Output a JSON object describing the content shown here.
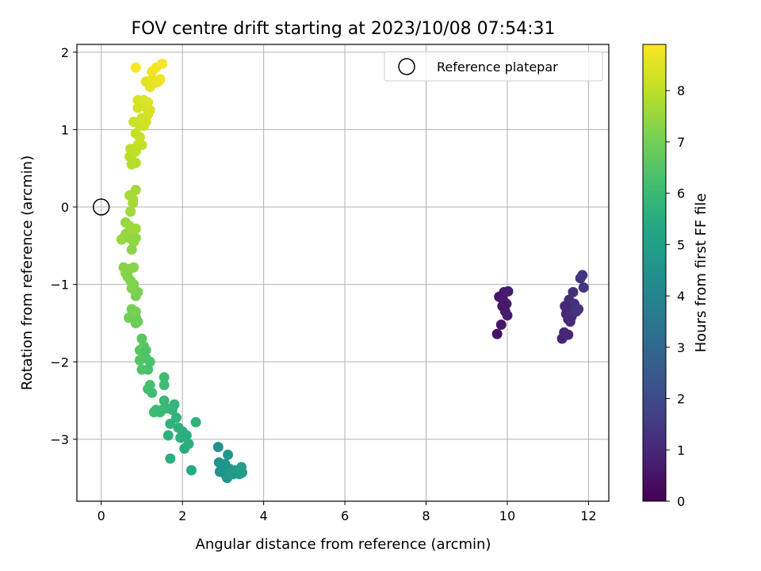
{
  "chart_data": {
    "type": "scatter",
    "title": "FOV centre drift starting at 2023/10/08 07:54:31",
    "xlabel": "Angular distance from reference (arcmin)",
    "ylabel": "Rotation from reference (arcmin)",
    "xlim": [
      -0.6,
      12.5
    ],
    "ylim": [
      -3.8,
      2.1
    ],
    "xticks": [
      0,
      2,
      4,
      6,
      8,
      10,
      12
    ],
    "yticks": [
      -3,
      -2,
      -1,
      0,
      1,
      2
    ],
    "grid": true,
    "legend": {
      "location": "top-right",
      "entries": [
        "Reference platepar"
      ]
    },
    "reference_point": {
      "x": 0,
      "y": 0
    },
    "colorbar": {
      "label": "Hours from first FF file",
      "range": [
        0,
        8.9
      ],
      "ticks": [
        0,
        1,
        2,
        3,
        4,
        5,
        6,
        7,
        8
      ],
      "colormap": "viridis"
    },
    "series": [
      {
        "points": [
          [
            9.75,
            -1.64,
            0.45
          ],
          [
            9.8,
            -1.16,
            0.5
          ],
          [
            9.85,
            -1.52,
            0.55
          ],
          [
            9.9,
            -1.2,
            0.6
          ],
          [
            9.92,
            -1.1,
            0.62
          ],
          [
            9.95,
            -1.35,
            0.65
          ],
          [
            10.0,
            -1.4,
            0.7
          ],
          [
            10.02,
            -1.09,
            0.72
          ],
          [
            9.98,
            -1.25,
            0.68
          ],
          [
            9.88,
            -1.28,
            0.58
          ],
          [
            11.35,
            -1.7,
            0.9
          ],
          [
            11.4,
            -1.62,
            0.95
          ],
          [
            11.45,
            -1.38,
            1.0
          ],
          [
            11.5,
            -1.45,
            1.05
          ],
          [
            11.52,
            -1.2,
            1.1
          ],
          [
            11.55,
            -1.3,
            1.12
          ],
          [
            11.58,
            -1.42,
            1.15
          ],
          [
            11.6,
            -1.38,
            1.18
          ],
          [
            11.62,
            -1.1,
            1.2
          ],
          [
            11.65,
            -1.25,
            1.22
          ],
          [
            11.7,
            -1.35,
            1.25
          ],
          [
            11.75,
            -1.32,
            1.3
          ],
          [
            11.8,
            -0.92,
            1.35
          ],
          [
            11.85,
            -0.88,
            1.38
          ],
          [
            11.88,
            -1.04,
            1.4
          ],
          [
            11.5,
            -1.65,
            1.0
          ],
          [
            11.42,
            -1.28,
            0.98
          ],
          [
            11.55,
            -1.48,
            1.08
          ],
          [
            2.88,
            -3.1,
            4.4
          ],
          [
            2.9,
            -3.3,
            4.45
          ],
          [
            2.95,
            -3.4,
            4.5
          ],
          [
            3.0,
            -3.35,
            4.55
          ],
          [
            3.05,
            -3.45,
            4.6
          ],
          [
            3.1,
            -3.5,
            4.65
          ],
          [
            3.12,
            -3.2,
            4.7
          ],
          [
            3.15,
            -3.38,
            4.72
          ],
          [
            3.2,
            -3.42,
            4.75
          ],
          [
            3.25,
            -3.45,
            4.78
          ],
          [
            3.3,
            -3.4,
            4.8
          ],
          [
            3.4,
            -3.45,
            4.85
          ],
          [
            3.45,
            -3.36,
            4.9
          ],
          [
            3.47,
            -3.43,
            4.92
          ],
          [
            3.05,
            -3.32,
            4.58
          ],
          [
            2.92,
            -3.42,
            4.5
          ],
          [
            1.7,
            -3.25,
            5.6
          ],
          [
            2.22,
            -3.4,
            5.4
          ],
          [
            2.33,
            -2.78,
            5.7
          ],
          [
            2.05,
            -3.12,
            5.5
          ],
          [
            2.15,
            -3.06,
            5.55
          ],
          [
            2.0,
            -2.9,
            5.6
          ],
          [
            1.9,
            -2.85,
            5.7
          ],
          [
            1.85,
            -2.72,
            5.75
          ],
          [
            1.75,
            -2.62,
            5.8
          ],
          [
            1.8,
            -2.55,
            5.85
          ],
          [
            1.7,
            -2.8,
            5.78
          ],
          [
            1.65,
            -2.95,
            5.65
          ],
          [
            1.6,
            -2.6,
            5.9
          ],
          [
            1.55,
            -2.5,
            5.95
          ],
          [
            1.45,
            -2.65,
            6.0
          ],
          [
            1.35,
            -2.62,
            6.05
          ],
          [
            1.3,
            -2.65,
            6.08
          ],
          [
            1.5,
            -2.62,
            6.02
          ],
          [
            1.95,
            -2.98,
            5.62
          ],
          [
            2.1,
            -2.95,
            5.58
          ],
          [
            1.55,
            -2.2,
            6.1
          ],
          [
            1.55,
            -2.3,
            6.12
          ],
          [
            1.25,
            -2.4,
            6.15
          ],
          [
            1.15,
            -2.35,
            6.2
          ],
          [
            1.2,
            -2.3,
            6.25
          ],
          [
            1.15,
            -2.1,
            6.3
          ],
          [
            1.2,
            -2.0,
            6.35
          ],
          [
            1.1,
            -1.95,
            6.4
          ],
          [
            1.05,
            -1.9,
            6.45
          ],
          [
            0.95,
            -1.98,
            6.5
          ],
          [
            0.95,
            -1.85,
            6.55
          ],
          [
            1.0,
            -1.7,
            6.6
          ],
          [
            1.05,
            -1.8,
            6.62
          ],
          [
            1.0,
            -2.1,
            6.38
          ],
          [
            1.1,
            -1.85,
            6.42
          ],
          [
            0.85,
            -1.5,
            6.8
          ],
          [
            0.9,
            -1.48,
            6.85
          ],
          [
            0.85,
            -1.42,
            6.9
          ],
          [
            0.68,
            -1.43,
            6.95
          ],
          [
            0.75,
            -1.32,
            7.0
          ],
          [
            0.8,
            -1.35,
            7.02
          ],
          [
            0.85,
            -1.35,
            7.05
          ],
          [
            0.9,
            -1.1,
            7.1
          ],
          [
            0.85,
            -1.15,
            7.12
          ],
          [
            0.8,
            -1.0,
            7.15
          ],
          [
            0.75,
            -1.05,
            7.18
          ],
          [
            0.72,
            -0.95,
            7.2
          ],
          [
            0.65,
            -0.9,
            7.22
          ],
          [
            0.7,
            -0.8,
            7.25
          ],
          [
            0.6,
            -0.85,
            7.28
          ],
          [
            0.55,
            -0.78,
            7.3
          ],
          [
            0.8,
            -0.78,
            7.32
          ],
          [
            0.75,
            -0.55,
            7.35
          ],
          [
            0.8,
            -0.45,
            7.38
          ],
          [
            0.7,
            -0.4,
            7.4
          ],
          [
            0.85,
            -0.4,
            7.42
          ],
          [
            0.6,
            -0.35,
            7.45
          ],
          [
            0.55,
            -0.4,
            7.48
          ],
          [
            0.5,
            -0.42,
            7.5
          ],
          [
            0.6,
            -0.2,
            7.52
          ],
          [
            0.7,
            -0.25,
            7.55
          ],
          [
            0.75,
            -0.3,
            7.58
          ],
          [
            0.85,
            -0.28,
            7.6
          ],
          [
            0.72,
            -0.06,
            7.62
          ],
          [
            0.78,
            0.05,
            7.65
          ],
          [
            0.78,
            0.1,
            7.68
          ],
          [
            0.7,
            0.15,
            7.7
          ],
          [
            0.85,
            0.22,
            7.72
          ],
          [
            0.75,
            0.55,
            7.9
          ],
          [
            0.85,
            0.57,
            7.92
          ],
          [
            0.7,
            0.65,
            7.95
          ],
          [
            0.8,
            0.7,
            8.0
          ],
          [
            0.72,
            0.75,
            8.02
          ],
          [
            0.85,
            0.72,
            8.05
          ],
          [
            0.9,
            0.8,
            8.08
          ],
          [
            1.0,
            0.8,
            8.1
          ],
          [
            0.95,
            0.9,
            8.12
          ],
          [
            0.85,
            0.95,
            8.15
          ],
          [
            0.8,
            1.1,
            8.18
          ],
          [
            0.95,
            1.05,
            8.2
          ],
          [
            1.05,
            1.05,
            8.22
          ],
          [
            1.1,
            1.1,
            8.25
          ],
          [
            1.0,
            1.15,
            8.28
          ],
          [
            0.9,
            1.28,
            8.3
          ],
          [
            1.05,
            1.3,
            8.32
          ],
          [
            1.15,
            1.2,
            8.35
          ],
          [
            1.2,
            1.25,
            8.38
          ],
          [
            0.9,
            1.38,
            8.4
          ],
          [
            1.05,
            1.38,
            8.42
          ],
          [
            1.15,
            1.35,
            8.45
          ],
          [
            1.1,
            1.62,
            8.5
          ],
          [
            1.2,
            1.55,
            8.55
          ],
          [
            1.25,
            1.65,
            8.58
          ],
          [
            1.3,
            1.6,
            8.6
          ],
          [
            1.4,
            1.62,
            8.62
          ],
          [
            1.45,
            1.65,
            8.65
          ],
          [
            1.25,
            1.75,
            8.7
          ],
          [
            1.35,
            1.8,
            8.75
          ],
          [
            1.5,
            1.85,
            8.8
          ],
          [
            0.85,
            1.8,
            8.85
          ]
        ]
      }
    ]
  }
}
